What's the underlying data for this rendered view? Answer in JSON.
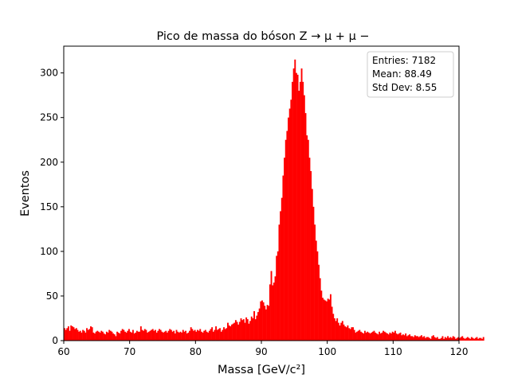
{
  "chart_data": {
    "type": "bar",
    "title": "Pico de massa do bóson Z → μ + μ −",
    "xlabel": "Massa [GeV/c²]",
    "ylabel": "Eventos",
    "xlim": [
      60,
      120
    ],
    "ylim": [
      0,
      330
    ],
    "xticks": [
      60,
      70,
      80,
      90,
      100,
      110,
      120
    ],
    "yticks": [
      0,
      50,
      100,
      150,
      200,
      250,
      300
    ],
    "bin_start": 60,
    "bin_width": 0.2,
    "bar_color": "#ff0000",
    "grid": false,
    "stats_box": {
      "position": "top-right",
      "lines": [
        "Entries: 7182",
        "Mean: 88.49",
        "Std Dev: 8.55"
      ]
    },
    "values": [
      14,
      12,
      14,
      16,
      11,
      17,
      16,
      15,
      13,
      14,
      12,
      10,
      11,
      9,
      12,
      11,
      9,
      14,
      12,
      13,
      16,
      15,
      9,
      8,
      10,
      11,
      10,
      9,
      11,
      10,
      8,
      7,
      10,
      9,
      12,
      11,
      10,
      8,
      7,
      5,
      10,
      9,
      8,
      11,
      13,
      12,
      10,
      9,
      11,
      13,
      10,
      9,
      12,
      8,
      9,
      11,
      10,
      10,
      16,
      12,
      11,
      13,
      12,
      9,
      10,
      11,
      12,
      13,
      11,
      12,
      9,
      11,
      13,
      12,
      10,
      9,
      10,
      11,
      9,
      11,
      13,
      12,
      10,
      11,
      8,
      12,
      10,
      9,
      10,
      9,
      12,
      10,
      11,
      8,
      9,
      11,
      15,
      13,
      11,
      12,
      10,
      12,
      11,
      13,
      10,
      9,
      11,
      12,
      10,
      9,
      11,
      13,
      15,
      10,
      12,
      16,
      12,
      13,
      14,
      10,
      12,
      15,
      13,
      14,
      20,
      17,
      16,
      18,
      19,
      20,
      23,
      21,
      18,
      21,
      25,
      23,
      24,
      20,
      26,
      24,
      19,
      22,
      27,
      25,
      33,
      24,
      28,
      32,
      36,
      44,
      45,
      43,
      39,
      35,
      40,
      39,
      63,
      78,
      62,
      65,
      72,
      95,
      100,
      130,
      145,
      160,
      185,
      205,
      225,
      235,
      250,
      260,
      270,
      290,
      305,
      315,
      300,
      298,
      280,
      290,
      305,
      290,
      275,
      255,
      230,
      225,
      205,
      190,
      170,
      150,
      130,
      112,
      100,
      85,
      70,
      56,
      48,
      46,
      45,
      44,
      47,
      46,
      52,
      38,
      30,
      25,
      22,
      25,
      20,
      17,
      20,
      22,
      18,
      16,
      15,
      17,
      14,
      13,
      15,
      15,
      12,
      9,
      10,
      11,
      12,
      10,
      9,
      8,
      11,
      9,
      10,
      9,
      8,
      9,
      10,
      11,
      9,
      8,
      7,
      10,
      8,
      9,
      11,
      10,
      9,
      8,
      7,
      9,
      8,
      10,
      9,
      11,
      8,
      7,
      8,
      9,
      6,
      7,
      6,
      8,
      5,
      6,
      7,
      5,
      5,
      4,
      6,
      5,
      5,
      4,
      5,
      6,
      4,
      5,
      3,
      4,
      4,
      3,
      2,
      5,
      6,
      4,
      3,
      4,
      2,
      2,
      3,
      5,
      2,
      4,
      3,
      5,
      3,
      4,
      3,
      5,
      4,
      2,
      3,
      4,
      3,
      4,
      5,
      3,
      2,
      3,
      4,
      3,
      2,
      4,
      3,
      2,
      3,
      4,
      2,
      3,
      3,
      2,
      4
    ]
  }
}
